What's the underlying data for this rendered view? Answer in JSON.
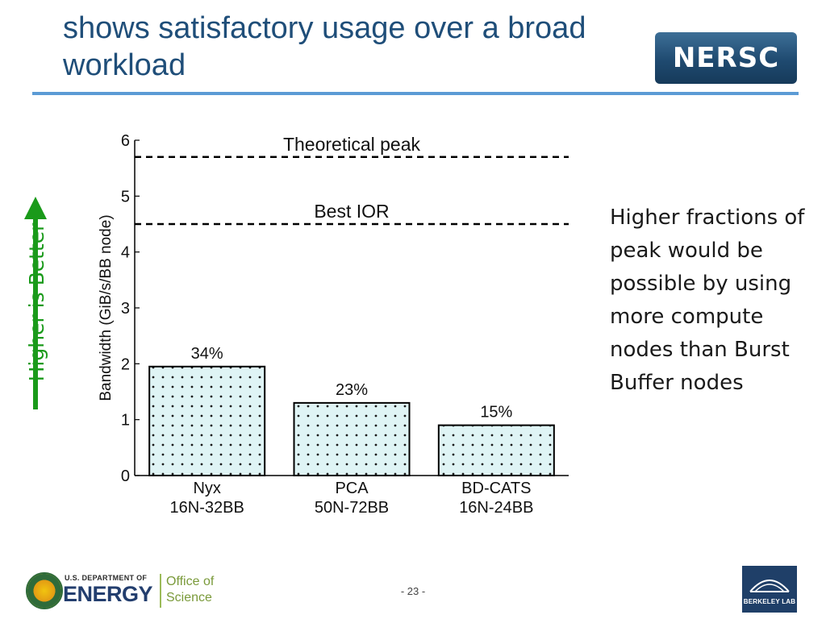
{
  "slide": {
    "title": "shows satisfactory usage over a broad workload",
    "logo_text": "NERSC",
    "page_number": "- 23 -",
    "vertical_label": "Higher is Better",
    "side_note": "Higher fractions of peak would be possible by using more compute nodes than Burst Buffer nodes",
    "footer": {
      "dept_text": "U.S. DEPARTMENT OF",
      "energy_text": "ENERGY",
      "office_line1": "Office of",
      "office_line2": "Science",
      "lab_text": "BERKELEY LAB"
    }
  },
  "chart_data": {
    "type": "bar",
    "ylabel": "Bandwidth (GiB/s/BB node)",
    "ylim": [
      0,
      6
    ],
    "yticks": [
      "0",
      "1",
      "2",
      "3",
      "4",
      "5",
      "6"
    ],
    "categories": [
      "Nyx",
      "PCA",
      "BD-CATS"
    ],
    "category_sublabels": [
      "16N-32BB",
      "50N-72BB",
      "16N-24BB"
    ],
    "values": [
      1.95,
      1.3,
      0.9
    ],
    "bar_labels": [
      "34%",
      "23%",
      "15%"
    ],
    "reference_lines": [
      {
        "name": "Theoretical peak",
        "value": 5.7
      },
      {
        "name": "Best IOR",
        "value": 4.5
      }
    ],
    "colors": {
      "bar_fill": "#dff4f5",
      "bar_dots": "#1a1a1a",
      "bar_edge": "#000000"
    }
  }
}
